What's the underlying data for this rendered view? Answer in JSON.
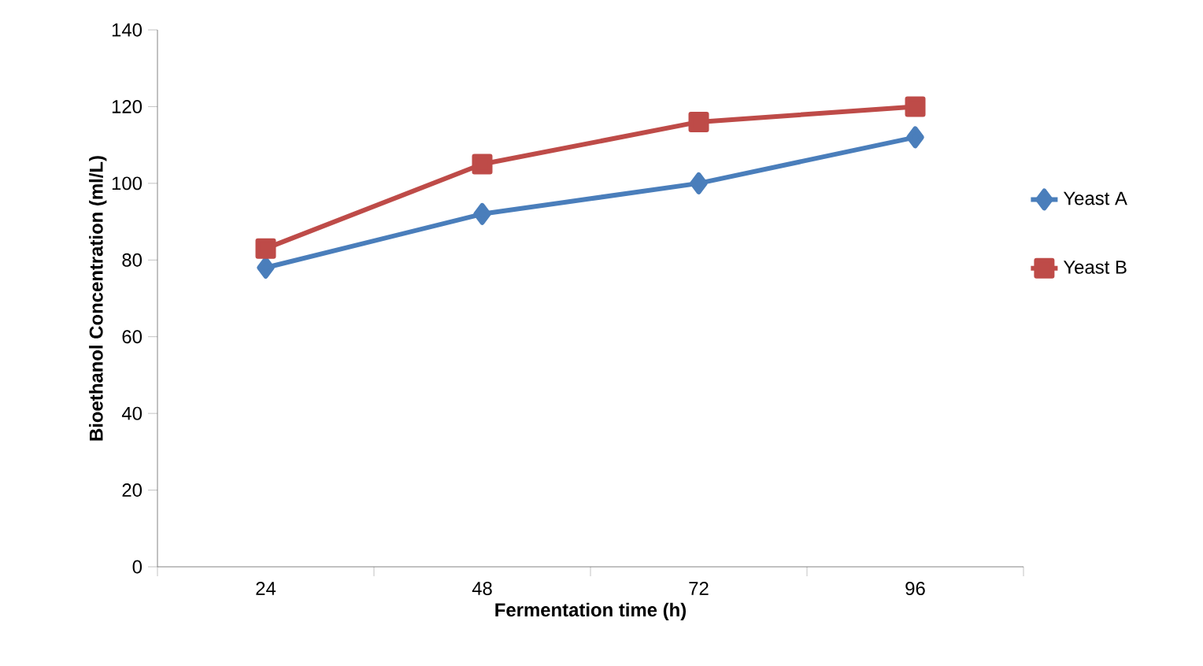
{
  "chart_data": {
    "type": "line",
    "xlabel": "Fermentation time (h)",
    "ylabel": "Bioethanol Concentration (ml/L)",
    "categories": [
      "24",
      "48",
      "72",
      "96"
    ],
    "ylim": [
      0,
      140
    ],
    "yticks": [
      0,
      20,
      40,
      60,
      80,
      100,
      120,
      140
    ],
    "grid": false,
    "legend": "right",
    "line_style": "solid",
    "series": [
      {
        "name": "Yeast A",
        "color": "#4a7ebb",
        "marker": "diamond",
        "values": [
          78,
          92,
          100,
          112
        ]
      },
      {
        "name": "Yeast B",
        "color": "#be4b48",
        "marker": "square",
        "values": [
          83,
          105,
          116,
          120
        ]
      }
    ]
  }
}
